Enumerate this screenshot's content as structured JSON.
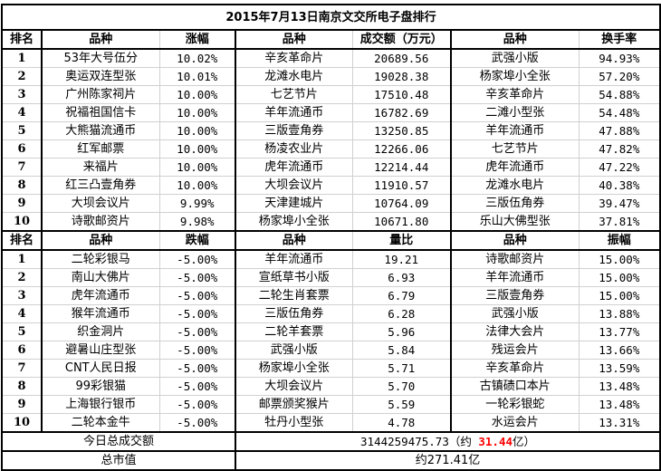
{
  "title": "2015年7月13日南京文交所电子盘排行",
  "top_header": [
    "排名",
    "品种",
    "涨幅",
    "品种",
    "成交额（万元）",
    "品种",
    "换手率"
  ],
  "top_rows": [
    [
      "1",
      "53年大号伍分",
      "10.02%",
      "辛亥革命片",
      "20689.56",
      "武强小版",
      "94.93%"
    ],
    [
      "2",
      "奥运双连型张",
      "10.01%",
      "龙滩水电片",
      "19028.38",
      "杨家埠小全张",
      "57.20%"
    ],
    [
      "3",
      "广州陈家祠片",
      "10.00%",
      "七艺节片",
      "17510.48",
      "辛亥革命片",
      "54.88%"
    ],
    [
      "4",
      "祝福祖国信卡",
      "10.00%",
      "羊年流通币",
      "16782.69",
      "二滩小型张",
      "54.48%"
    ],
    [
      "5",
      "大熊猫流通币",
      "10.00%",
      "三版壹角券",
      "13250.85",
      "羊年流通币",
      "47.88%"
    ],
    [
      "6",
      "红军邮票",
      "10.00%",
      "杨凌农业片",
      "12266.06",
      "七艺节片",
      "47.82%"
    ],
    [
      "7",
      "来福片",
      "10.00%",
      "虎年流通币",
      "12214.44",
      "虎年流通币",
      "47.22%"
    ],
    [
      "8",
      "红三凸壹角券",
      "10.00%",
      "大坝会议片",
      "11910.57",
      "龙滩水电片",
      "40.38%"
    ],
    [
      "9",
      "大坝会议片",
      "9.99%",
      "天津建城片",
      "10764.09",
      "三版伍角券",
      "39.47%"
    ],
    [
      "10",
      "诗歌邮资片",
      "9.98%",
      "杨家埠小全张",
      "10671.80",
      "乐山大佛型张",
      "37.81%"
    ]
  ],
  "bottom_header": [
    "排名",
    "品种",
    "跌幅",
    "品种",
    "量比",
    "品种",
    "振幅"
  ],
  "bottom_rows": [
    [
      "1",
      "二轮彩银马",
      "-5.00%",
      "羊年流通币",
      "19.21",
      "诗歌邮资片",
      "15.00%"
    ],
    [
      "2",
      "南山大佛片",
      "-5.00%",
      "宣纸草书小版",
      "6.93",
      "羊年流通币",
      "15.00%"
    ],
    [
      "3",
      "虎年流通币",
      "-5.00%",
      "二轮生肖套票",
      "6.79",
      "三版壹角券",
      "15.00%"
    ],
    [
      "4",
      "猴年流通币",
      "-5.00%",
      "三版伍角券",
      "6.28",
      "武强小版",
      "13.88%"
    ],
    [
      "5",
      "织金洞片",
      "-5.00%",
      "二轮羊套票",
      "5.96",
      "法律大会片",
      "13.77%"
    ],
    [
      "6",
      "避暑山庄型张",
      "-5.00%",
      "武强小版",
      "5.84",
      "残运会片",
      "13.66%"
    ],
    [
      "7",
      "CNT人民日报",
      "-5.00%",
      "杨家埠小全张",
      "5.71",
      "辛亥革命片",
      "13.59%"
    ],
    [
      "8",
      "99彩银猫",
      "-5.00%",
      "大坝会议片",
      "5.70",
      "古镇碛口本片",
      "13.48%"
    ],
    [
      "9",
      "上海银行银币",
      "-5.00%",
      "邮票颁奖猴片",
      "5.59",
      "一轮彩银蛇",
      "13.48%"
    ],
    [
      "10",
      "二轮本金牛",
      "-5.00%",
      "牡丹小型张",
      "4.78",
      "水运会片",
      "13.31%"
    ]
  ],
  "summary": {
    "turnover_label": "今日总成交额",
    "turnover_value": "3144259475.73（约 ",
    "turnover_highlight": "31.44",
    "turnover_suffix": "亿）",
    "market_cap_label": "总市值",
    "market_cap_value": "约271.41亿"
  },
  "colors": {
    "highlight": "#ff0000"
  }
}
